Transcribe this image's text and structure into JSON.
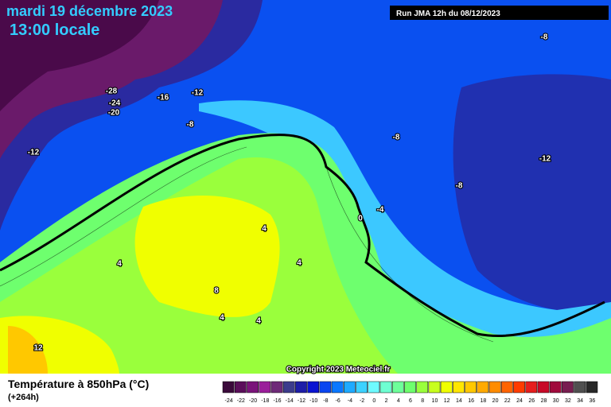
{
  "header": {
    "date": "mardi 19 décembre 2023",
    "time": "13:00 locale",
    "run": "Run JMA 12h du 08/12/2023"
  },
  "contour_labels": [
    -28,
    -24,
    -20,
    -16,
    -12,
    -8,
    -12,
    -8,
    -8,
    -12,
    -8,
    -4,
    0,
    4,
    4,
    4,
    8,
    4,
    4,
    12
  ],
  "copyright": "Copyright 2023 Meteociel.fr",
  "legend": {
    "title": "Température à 850hPa (°C)",
    "lead_time": "(+264h)",
    "labels": [
      -24,
      -22,
      -20,
      -18,
      -16,
      -14,
      -12,
      -10,
      -8,
      -6,
      -4,
      -2,
      0,
      2,
      4,
      6,
      8,
      10,
      12,
      14,
      16,
      18,
      20,
      22,
      24,
      26,
      28,
      30,
      32,
      34,
      36
    ],
    "colors": [
      "#3a0a3a",
      "#5a0f5a",
      "#7a147a",
      "#9a1e9a",
      "#6e2a78",
      "#3c3c8c",
      "#1e1ea8",
      "#0a14d2",
      "#0a46f0",
      "#0a78ff",
      "#1eaaff",
      "#3cd2ff",
      "#6efaff",
      "#6effd2",
      "#6eff9a",
      "#6eff6e",
      "#9aff3c",
      "#c8ff1e",
      "#f0ff00",
      "#ffe600",
      "#ffc800",
      "#ffaa00",
      "#ff8c00",
      "#ff6400",
      "#ff3c00",
      "#e61e1e",
      "#c80a28",
      "#a00a3c",
      "#781e50",
      "#505050",
      "#282828"
    ]
  }
}
